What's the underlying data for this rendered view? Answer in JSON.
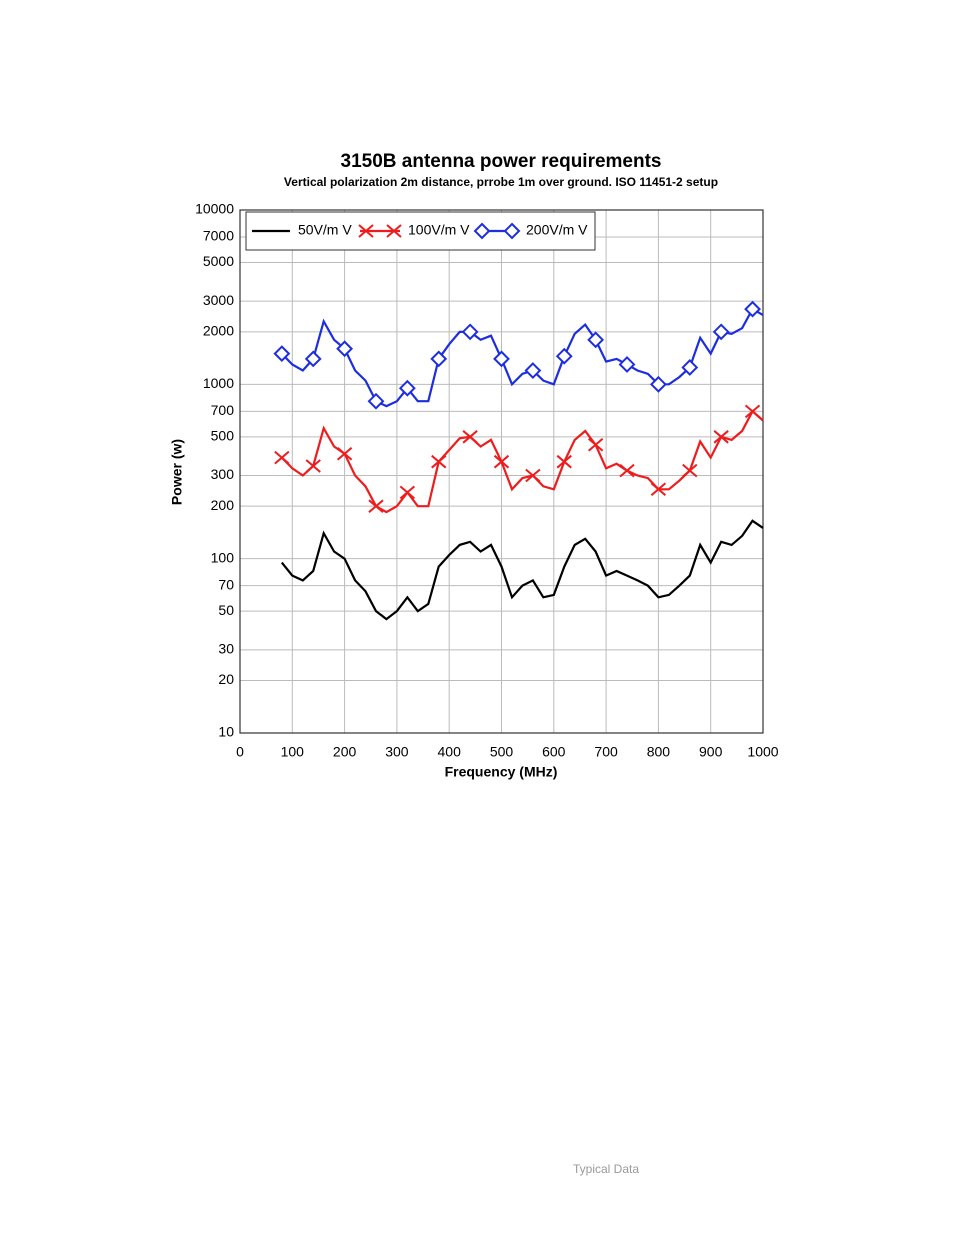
{
  "chart_data": {
    "type": "line",
    "title": "3150B antenna power requirements",
    "subtitle": "Vertical polarization 2m distance, prrobe 1m over ground. ISO 11451-2 setup",
    "x_label": "Frequency (MHz)",
    "y_label": "Power (w)",
    "log_y": true,
    "grid": true,
    "legend": "top-left",
    "xlim": [
      0,
      1000
    ],
    "xticks": [
      0,
      100,
      200,
      300,
      400,
      500,
      600,
      700,
      800,
      900,
      1000
    ],
    "ylim": [
      10,
      10000
    ],
    "yticks": [
      10,
      20,
      30,
      50,
      70,
      100,
      200,
      300,
      500,
      700,
      1000,
      2000,
      3000,
      5000,
      7000,
      10000
    ],
    "x": [
      80,
      100,
      120,
      140,
      160,
      180,
      200,
      220,
      240,
      260,
      280,
      300,
      320,
      340,
      360,
      380,
      400,
      420,
      440,
      460,
      480,
      500,
      520,
      540,
      560,
      580,
      600,
      620,
      640,
      660,
      680,
      700,
      720,
      740,
      760,
      780,
      800,
      820,
      840,
      860,
      880,
      900,
      920,
      940,
      960,
      980,
      1000
    ],
    "series": [
      {
        "name": "50V/m V",
        "color": "#000000",
        "marker": "none",
        "values": [
          95,
          80,
          75,
          85,
          140,
          110,
          100,
          75,
          65,
          50,
          45,
          50,
          60,
          50,
          55,
          90,
          105,
          120,
          125,
          110,
          120,
          90,
          60,
          70,
          75,
          60,
          62,
          90,
          120,
          130,
          110,
          80,
          85,
          80,
          75,
          70,
          60,
          62,
          70,
          80,
          120,
          95,
          125,
          120,
          135,
          165,
          150
        ]
      },
      {
        "name": "100V/m V",
        "color": "#ee1c1c",
        "marker": "x",
        "values": [
          380,
          330,
          300,
          340,
          560,
          440,
          400,
          300,
          260,
          200,
          185,
          200,
          240,
          200,
          200,
          360,
          420,
          490,
          500,
          440,
          480,
          360,
          250,
          290,
          300,
          260,
          250,
          360,
          480,
          540,
          450,
          330,
          350,
          320,
          300,
          290,
          250,
          250,
          280,
          320,
          470,
          380,
          500,
          480,
          540,
          700,
          620
        ]
      },
      {
        "name": "200V/m V",
        "color": "#1c2ee0",
        "marker": "diamond",
        "values": [
          1500,
          1300,
          1200,
          1400,
          2300,
          1800,
          1600,
          1200,
          1050,
          800,
          750,
          800,
          950,
          800,
          800,
          1400,
          1700,
          2000,
          2000,
          1800,
          1900,
          1400,
          1000,
          1150,
          1200,
          1050,
          1000,
          1450,
          1950,
          2200,
          1800,
          1350,
          1400,
          1300,
          1200,
          1150,
          1000,
          1000,
          1100,
          1250,
          1850,
          1500,
          2000,
          1950,
          2100,
          2700,
          2500
        ]
      }
    ]
  },
  "footer": "Typical Data"
}
